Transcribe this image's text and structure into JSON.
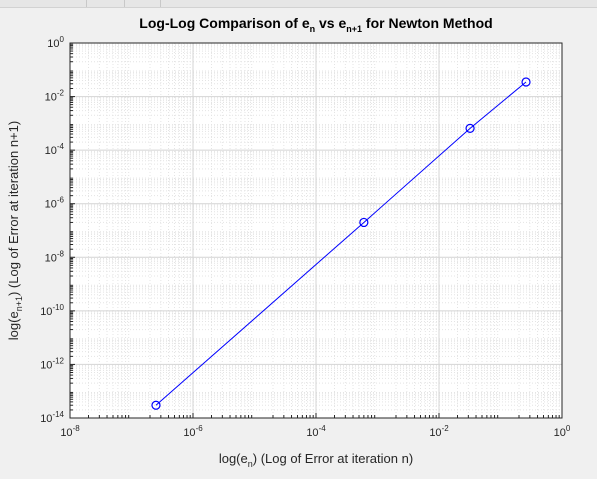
{
  "chart_data": {
    "type": "line",
    "title_parts": [
      "Log-Log Comparison of e",
      "n",
      " vs e",
      "n+1",
      " for Newton Method"
    ],
    "xlabel_parts": [
      "log(e",
      "n",
      ") (Log of Error at iteration n)"
    ],
    "ylabel_parts": [
      "log(e",
      "n+1",
      ") (Log of Error at iteration n+1)"
    ],
    "x_scale": "log",
    "y_scale": "log",
    "xlim": [
      1e-08,
      1
    ],
    "ylim": [
      1e-14,
      1
    ],
    "x_ticks": [
      -8,
      -6,
      -4,
      -2,
      0
    ],
    "y_ticks": [
      -14,
      -12,
      -10,
      -8,
      -6,
      -4,
      -2,
      0
    ],
    "tick_base": "10",
    "grid": "on (major and minor)",
    "marker": "circle",
    "line_color": "#0000ff",
    "series": [
      {
        "x": [
          2.5e-07,
          0.0006,
          0.032,
          0.26
        ],
        "y": [
          3e-14,
          2e-07,
          0.00065,
          0.035
        ]
      }
    ]
  }
}
